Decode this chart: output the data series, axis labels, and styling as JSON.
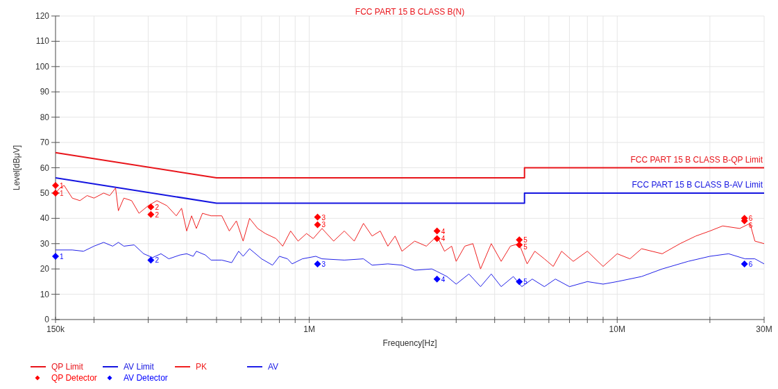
{
  "chart_data": {
    "type": "line",
    "title": "FCC PART 15 B CLASS B(N)",
    "xlabel": "Frequency[Hz]",
    "ylabel": "Level[dBμV]",
    "log": "x",
    "grid": true,
    "legend": "bottom",
    "line_style": "solid",
    "xlim": [
      150000,
      30000000
    ],
    "ylim": [
      0,
      120
    ],
    "xticks": [
      {
        "value": 150000,
        "label": "150k"
      },
      {
        "value": 200000,
        "label": null
      },
      {
        "value": 300000,
        "label": null
      },
      {
        "value": 400000,
        "label": null
      },
      {
        "value": 500000,
        "label": null
      },
      {
        "value": 600000,
        "label": null
      },
      {
        "value": 700000,
        "label": null
      },
      {
        "value": 800000,
        "label": null
      },
      {
        "value": 900000,
        "label": null
      },
      {
        "value": 1000000,
        "label": "1M"
      },
      {
        "value": 2000000,
        "label": null
      },
      {
        "value": 3000000,
        "label": null
      },
      {
        "value": 4000000,
        "label": null
      },
      {
        "value": 5000000,
        "label": null
      },
      {
        "value": 6000000,
        "label": null
      },
      {
        "value": 7000000,
        "label": null
      },
      {
        "value": 8000000,
        "label": null
      },
      {
        "value": 9000000,
        "label": null
      },
      {
        "value": 10000000,
        "label": "10M"
      },
      {
        "value": 20000000,
        "label": null
      },
      {
        "value": 30000000,
        "label": "30M"
      }
    ],
    "yticks": [
      0,
      10,
      20,
      30,
      40,
      50,
      60,
      70,
      80,
      90,
      100,
      110,
      120
    ],
    "annotations": [
      {
        "text": "FCC PART 15 B CLASS B-QP Limit",
        "x": 30000000,
        "y": 60
      },
      {
        "text": "FCC PART 15 B CLASS B-AV Limit",
        "x": 30000000,
        "y": 50
      },
      {
        "text": "1",
        "x": 150000,
        "y": 53
      },
      {
        "text": "1",
        "x": 150000,
        "y": 50
      },
      {
        "text": "2",
        "x": 306000,
        "y": 44.5
      },
      {
        "text": "2",
        "x": 306000,
        "y": 41.5
      },
      {
        "text": "3",
        "x": 1064000,
        "y": 40.5
      },
      {
        "text": "3",
        "x": 1064000,
        "y": 37.5
      },
      {
        "text": "4",
        "x": 2600000,
        "y": 35
      },
      {
        "text": "4",
        "x": 2600000,
        "y": 32
      },
      {
        "text": "5",
        "x": 4810000,
        "y": 31.5
      },
      {
        "text": "5",
        "x": 4810000,
        "y": 29.5
      },
      {
        "text": "6",
        "x": 25900000,
        "y": 40
      },
      {
        "text": "6",
        "x": 25900000,
        "y": 39
      },
      {
        "text": "1",
        "x": 150000,
        "y": 25
      },
      {
        "text": "2",
        "x": 306000,
        "y": 23.5
      },
      {
        "text": "3",
        "x": 1064000,
        "y": 22
      },
      {
        "text": "4",
        "x": 2600000,
        "y": 16
      },
      {
        "text": "5",
        "x": 4810000,
        "y": 15
      },
      {
        "text": "6",
        "x": 25900000,
        "y": 22
      }
    ],
    "series": [
      {
        "name": "QP Limit",
        "color": "#e8141a",
        "x": [
          150000,
          500000,
          5000000,
          5000000,
          30000000
        ],
        "values": [
          66,
          56,
          56,
          60,
          60
        ]
      },
      {
        "name": "AV Limit",
        "color": "#1414e0",
        "x": [
          150000,
          500000,
          5000000,
          5000000,
          30000000
        ],
        "values": [
          56,
          46,
          46,
          50,
          50
        ]
      },
      {
        "name": "PK",
        "color": "#f02020",
        "x": [
          150000,
          155000,
          160000,
          170000,
          180000,
          190000,
          200000,
          215000,
          225000,
          235000,
          240000,
          250000,
          265000,
          280000,
          300000,
          320000,
          345000,
          370000,
          385000,
          400000,
          415000,
          430000,
          450000,
          480000,
          520000,
          550000,
          580000,
          610000,
          640000,
          680000,
          720000,
          780000,
          820000,
          870000,
          920000,
          980000,
          1030000,
          1100000,
          1200000,
          1300000,
          1400000,
          1500000,
          1600000,
          1700000,
          1800000,
          1900000,
          2000000,
          2200000,
          2400000,
          2600000,
          2750000,
          2900000,
          3000000,
          3200000,
          3400000,
          3600000,
          3900000,
          4200000,
          4500000,
          4800000,
          5100000,
          5400000,
          5800000,
          6200000,
          6600000,
          7200000,
          8000000,
          9000000,
          10000000,
          11000000,
          12000000,
          14000000,
          16000000,
          18000000,
          20000000,
          22000000,
          25000000,
          27000000,
          28000000,
          30000000
        ],
        "values": [
          50,
          52,
          53,
          48,
          47,
          49,
          48,
          50,
          49,
          52,
          43,
          48,
          47,
          42,
          45,
          47,
          45,
          41,
          44,
          35,
          41,
          36,
          42,
          41,
          41,
          35,
          39,
          31,
          40,
          36,
          34,
          32,
          29,
          35,
          31,
          34,
          32,
          36,
          31,
          35,
          31,
          38,
          33,
          35,
          29,
          33,
          27,
          31,
          29,
          33,
          27,
          29,
          23,
          29,
          30,
          20,
          30,
          23,
          29,
          30,
          22,
          27,
          24,
          21,
          27,
          23,
          27,
          21,
          26,
          24,
          28,
          26,
          30,
          33,
          35,
          37,
          36,
          38,
          31,
          30
        ]
      },
      {
        "name": "AV",
        "color": "#2020e8",
        "x": [
          150000,
          170000,
          185000,
          200000,
          215000,
          230000,
          240000,
          250000,
          270000,
          290000,
          310000,
          330000,
          350000,
          380000,
          400000,
          420000,
          430000,
          460000,
          480000,
          520000,
          560000,
          590000,
          610000,
          640000,
          700000,
          760000,
          800000,
          850000,
          880000,
          950000,
          1050000,
          1100000,
          1300000,
          1500000,
          1600000,
          1800000,
          2000000,
          2200000,
          2500000,
          2600000,
          2800000,
          3000000,
          3300000,
          3600000,
          3900000,
          4200000,
          4600000,
          4900000,
          5300000,
          5800000,
          6300000,
          7000000,
          8000000,
          9000000,
          10000000,
          12000000,
          14000000,
          17000000,
          20000000,
          23000000,
          26000000,
          28000000,
          30000000
        ],
        "values": [
          27.5,
          27.5,
          27,
          29,
          30.5,
          29,
          30.5,
          29,
          29.5,
          26,
          24.5,
          26,
          24,
          25.5,
          26,
          25,
          27,
          25.5,
          23.5,
          23.5,
          22.5,
          27,
          25,
          28,
          24,
          21.5,
          25,
          24,
          22,
          24,
          25,
          24,
          23.5,
          24,
          21.5,
          22,
          21.5,
          19.5,
          20,
          19,
          17,
          14,
          18,
          13,
          18,
          13,
          17,
          13,
          16,
          13,
          16,
          13,
          15,
          14,
          15,
          17,
          20,
          23,
          25,
          26,
          24,
          24,
          22
        ]
      },
      {
        "name": "QP Detector",
        "type": "scatter",
        "marker": "diamond",
        "color": "#ff0000",
        "x": [
          150000,
          150000,
          306000,
          306000,
          1064000,
          1064000,
          2600000,
          2600000,
          4810000,
          4810000,
          25900000,
          25900000
        ],
        "values": [
          53,
          50,
          44.5,
          41.5,
          40.5,
          37.5,
          35,
          32,
          31.5,
          29.5,
          40,
          39
        ]
      },
      {
        "name": "AV Detector",
        "type": "scatter",
        "marker": "diamond",
        "color": "#0000ff",
        "x": [
          150000,
          306000,
          1064000,
          2600000,
          4810000,
          25900000
        ],
        "values": [
          25,
          23.5,
          22,
          16,
          15,
          22
        ]
      }
    ]
  }
}
